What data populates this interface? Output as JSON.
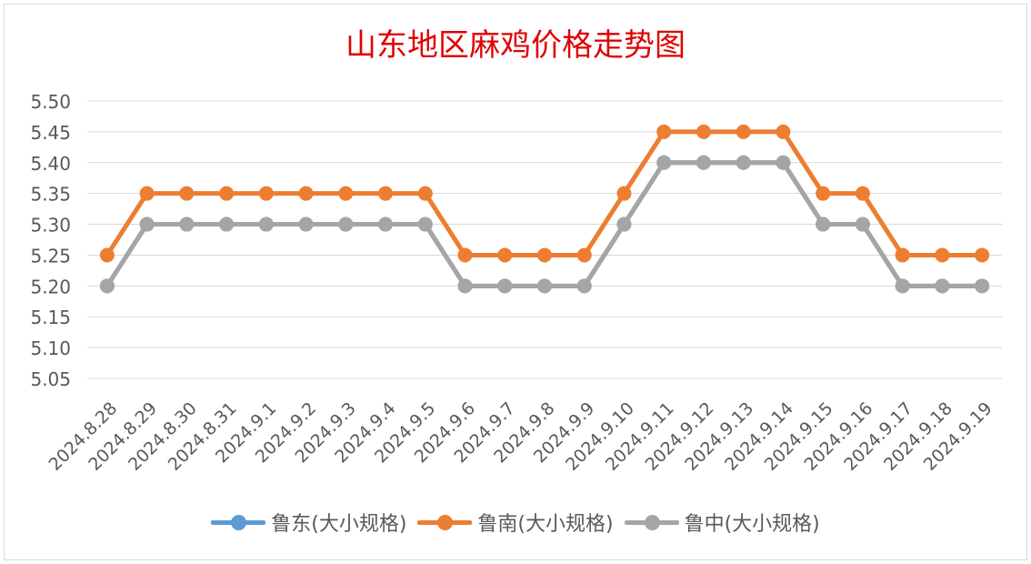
{
  "chart_data": {
    "type": "line",
    "title": "山东地区麻鸡价格走势图",
    "categories": [
      "2024.8.28",
      "2024.8.29",
      "2024.8.30",
      "2024.8.31",
      "2024.9.1",
      "2024.9.2",
      "2024.9.3",
      "2024.9.4",
      "2024.9.5",
      "2024.9.6",
      "2024.9.7",
      "2024.9.8",
      "2024.9.9",
      "2024.9.10",
      "2024.9.11",
      "2024.9.12",
      "2024.9.13",
      "2024.9.14",
      "2024.9.15",
      "2024.9.16",
      "2024.9.17",
      "2024.9.18",
      "2024.9.19"
    ],
    "series": [
      {
        "name": "鲁东(大小规格)",
        "color": "#5b9bd5",
        "values": [
          5.2,
          5.3,
          5.3,
          5.3,
          5.3,
          5.3,
          5.3,
          5.3,
          5.3,
          5.2,
          5.2,
          5.2,
          5.2,
          5.3,
          5.4,
          5.4,
          5.4,
          5.4,
          5.3,
          5.3,
          5.2,
          5.2,
          5.2
        ]
      },
      {
        "name": "鲁南(大小规格)",
        "color": "#ed7d31",
        "values": [
          5.25,
          5.35,
          5.35,
          5.35,
          5.35,
          5.35,
          5.35,
          5.35,
          5.35,
          5.25,
          5.25,
          5.25,
          5.25,
          5.35,
          5.45,
          5.45,
          5.45,
          5.45,
          5.35,
          5.35,
          5.25,
          5.25,
          5.25
        ]
      },
      {
        "name": "鲁中(大小规格)",
        "color": "#a5a5a5",
        "values": [
          5.2,
          5.3,
          5.3,
          5.3,
          5.3,
          5.3,
          5.3,
          5.3,
          5.3,
          5.2,
          5.2,
          5.2,
          5.2,
          5.3,
          5.4,
          5.4,
          5.4,
          5.4,
          5.3,
          5.3,
          5.2,
          5.2,
          5.2
        ]
      }
    ],
    "yticks": [
      "5.05",
      "5.10",
      "5.15",
      "5.20",
      "5.25",
      "5.30",
      "5.35",
      "5.40",
      "5.45",
      "5.50"
    ],
    "ylim": [
      5.05,
      5.5
    ],
    "grid": true,
    "legend_position": "bottom"
  }
}
